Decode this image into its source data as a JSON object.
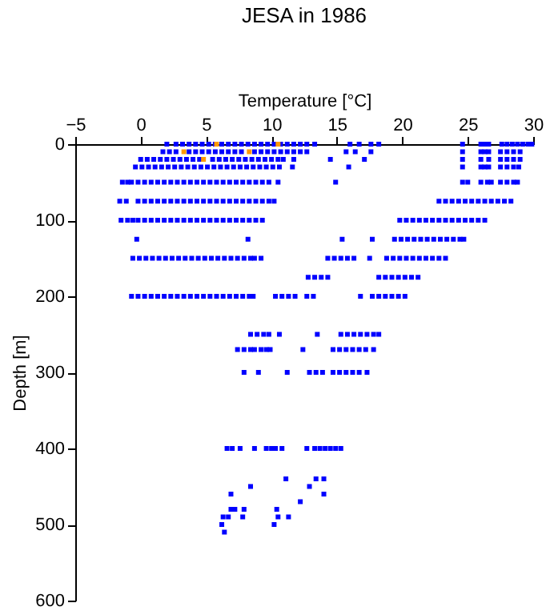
{
  "chart_data": {
    "type": "scatter",
    "title": "JESA in 1986",
    "xlabel": "Temperature [°C]",
    "ylabel": "Depth [m]",
    "xlim": [
      -5,
      30
    ],
    "xticks": [
      -5,
      0,
      5,
      10,
      15,
      20,
      25,
      30
    ],
    "ylim": [
      600,
      0
    ],
    "yticks": [
      0,
      100,
      200,
      300,
      400,
      500,
      600
    ],
    "grid": false,
    "legend": false,
    "marker": "square",
    "series": [
      {
        "color": "#0000ff",
        "x": [
          2.0,
          2.7,
          3.2,
          3.7,
          4.2,
          4.7,
          5.2,
          5.7,
          6.2,
          6.7,
          7.2,
          7.7,
          8.2,
          8.7,
          9.2,
          9.7,
          10.2,
          10.7,
          11.2,
          11.7,
          12.2,
          12.7,
          13.3,
          16.0,
          16.7,
          17.6,
          18.2,
          24.6,
          26.0,
          26.3,
          26.6,
          27.6,
          28.0,
          28.4,
          28.8,
          29.2,
          29.6,
          29.9
        ],
        "values": [
          0,
          0,
          0,
          0,
          0,
          0,
          0,
          0,
          0,
          0,
          0,
          0,
          0,
          0,
          0,
          0,
          0,
          0,
          0,
          0,
          0,
          0,
          0,
          0,
          0,
          0,
          0,
          0,
          0,
          0,
          0,
          0,
          0,
          0,
          0,
          0,
          0,
          0
        ]
      },
      {
        "color": "#0000ff",
        "x": [
          1.7,
          2.2,
          2.7,
          null,
          3.7,
          4.2,
          4.7,
          5.2,
          5.7,
          6.2,
          6.7,
          7.2,
          7.7,
          null,
          8.7,
          9.2,
          9.7,
          10.2,
          10.7,
          11.2,
          11.7,
          12.2,
          12.7,
          15.7,
          16.4,
          17.6,
          24.6,
          26.0,
          26.3,
          26.6,
          27.5,
          28.0,
          28.5,
          29.0
        ],
        "values": [
          10,
          10,
          10,
          null,
          10,
          10,
          10,
          10,
          10,
          10,
          10,
          10,
          10,
          null,
          10,
          10,
          10,
          10,
          10,
          10,
          10,
          10,
          10,
          10,
          10,
          10,
          10,
          10,
          10,
          10,
          10,
          10,
          10,
          10
        ]
      },
      {
        "color": "#0000ff",
        "x": [
          0,
          0.5,
          1,
          1.5,
          2,
          2.5,
          3,
          3.5,
          4,
          4.5,
          null,
          5.5,
          6,
          6.5,
          7,
          7.5,
          8,
          8.5,
          9,
          9.5,
          10,
          10.5,
          10.9,
          11.7,
          14.5,
          17.1,
          24.6,
          26.0,
          null,
          26.6,
          27.5,
          28.0,
          28.5,
          29.0
        ],
        "values": [
          20,
          20,
          20,
          20,
          20,
          20,
          20,
          20,
          20,
          20,
          null,
          20,
          20,
          20,
          20,
          20,
          20,
          20,
          20,
          20,
          20,
          20,
          20,
          20,
          20,
          20,
          20,
          20,
          null,
          20,
          20,
          20,
          20,
          20
        ]
      },
      {
        "color": "#0000ff",
        "x": [
          -0.4,
          0.1,
          0.6,
          1.1,
          1.6,
          2.1,
          2.6,
          3.1,
          3.6,
          4.1,
          4.6,
          5.1,
          5.6,
          6.1,
          6.6,
          7.1,
          7.6,
          8.1,
          8.6,
          9.1,
          9.6,
          10.1,
          10.6,
          11.6,
          15.9,
          24.6,
          26.0,
          26.3,
          26.6,
          27.5,
          28.0,
          28.5,
          28.9
        ],
        "values": [
          30,
          30,
          30,
          30,
          30,
          30,
          30,
          30,
          30,
          30,
          30,
          30,
          30,
          30,
          30,
          30,
          30,
          30,
          30,
          30,
          30,
          30,
          30,
          30,
          30,
          30,
          30,
          30,
          30,
          30,
          30,
          30,
          30
        ]
      },
      {
        "color": "#0000ff",
        "x": [
          -1.4,
          -1.0,
          -0.7,
          -0.2,
          0.3,
          0.8,
          1.3,
          1.8,
          2.3,
          2.8,
          3.3,
          3.8,
          4.3,
          4.8,
          5.3,
          5.8,
          6.3,
          6.8,
          7.3,
          7.8,
          8.3,
          8.8,
          9.3,
          9.8,
          10.5,
          14.9,
          24.6,
          25.0,
          26.0,
          26.5,
          26.8,
          27.5,
          28.0,
          28.5,
          28.8
        ],
        "values": [
          50,
          50,
          50,
          50,
          50,
          50,
          50,
          50,
          50,
          50,
          50,
          50,
          50,
          50,
          50,
          50,
          50,
          50,
          50,
          50,
          50,
          50,
          50,
          50,
          50,
          50,
          50,
          50,
          50,
          50,
          50,
          50,
          50,
          50,
          50
        ]
      },
      {
        "color": "#0000ff",
        "x": [
          -1.6,
          -1.1,
          -0.2,
          0.3,
          0.8,
          1.3,
          1.8,
          2.3,
          2.8,
          3.3,
          3.8,
          4.3,
          4.8,
          5.3,
          5.8,
          6.3,
          6.8,
          7.3,
          7.8,
          8.3,
          8.8,
          9.3,
          9.8,
          10.2,
          22.8,
          23.3,
          23.8,
          24.3,
          24.8,
          25.3,
          25.8,
          26.3,
          26.8,
          27.3,
          27.8,
          28.3
        ],
        "values": [
          75,
          75,
          75,
          75,
          75,
          75,
          75,
          75,
          75,
          75,
          75,
          75,
          75,
          75,
          75,
          75,
          75,
          75,
          75,
          75,
          75,
          75,
          75,
          75,
          75,
          75,
          75,
          75,
          75,
          75,
          75,
          75,
          75,
          75,
          75,
          75
        ]
      },
      {
        "color": "#0000ff",
        "x": [
          -1.5,
          -1.0,
          -0.6,
          -0.2,
          0.3,
          0.8,
          1.3,
          1.8,
          2.3,
          2.8,
          3.3,
          3.8,
          4.3,
          4.8,
          5.3,
          5.8,
          6.3,
          6.8,
          7.3,
          7.8,
          8.3,
          8.8,
          9.3,
          19.8,
          20.3,
          20.8,
          21.3,
          21.8,
          22.3,
          22.8,
          23.3,
          23.8,
          24.3,
          24.8,
          25.3,
          25.8,
          26.3
        ],
        "values": [
          100,
          100,
          100,
          100,
          100,
          100,
          100,
          100,
          100,
          100,
          100,
          100,
          100,
          100,
          100,
          100,
          100,
          100,
          100,
          100,
          100,
          100,
          100,
          100,
          100,
          100,
          100,
          100,
          100,
          100,
          100,
          100,
          100,
          100,
          100,
          100,
          100
        ]
      },
      {
        "color": "#0000ff",
        "x": [
          -0.3,
          8.2,
          15.4,
          17.7,
          19.4,
          19.9,
          20.4,
          20.9,
          21.4,
          21.9,
          22.4,
          22.9,
          23.4,
          23.9,
          24.4,
          24.7
        ],
        "values": [
          125,
          125,
          125,
          125,
          125,
          125,
          125,
          125,
          125,
          125,
          125,
          125,
          125,
          125,
          125,
          125
        ]
      },
      {
        "color": "#0000ff",
        "x": [
          -0.6,
          -0.1,
          0.4,
          0.9,
          1.4,
          1.9,
          2.4,
          2.9,
          3.4,
          3.9,
          4.4,
          4.9,
          5.4,
          5.9,
          6.4,
          6.9,
          7.4,
          7.9,
          8.4,
          8.7,
          9.2,
          14.3,
          14.8,
          15.3,
          15.8,
          16.3,
          17.5,
          18.8,
          19.3,
          19.8,
          20.3,
          20.8,
          21.3,
          21.8,
          22.3,
          22.8,
          23.3
        ],
        "values": [
          150,
          150,
          150,
          150,
          150,
          150,
          150,
          150,
          150,
          150,
          150,
          150,
          150,
          150,
          150,
          150,
          150,
          150,
          150,
          150,
          150,
          150,
          150,
          150,
          150,
          150,
          150,
          150,
          150,
          150,
          150,
          150,
          150,
          150,
          150,
          150,
          150
        ]
      },
      {
        "color": "#0000ff",
        "x": [
          12.8,
          13.3,
          13.8,
          14.3,
          18.2,
          18.7,
          19.2,
          19.7,
          20.2,
          20.7,
          21.2
        ],
        "values": [
          175,
          175,
          175,
          175,
          175,
          175,
          175,
          175,
          175,
          175,
          175
        ]
      },
      {
        "color": "#0000ff",
        "x": [
          -0.7,
          -0.2,
          0.3,
          0.8,
          1.3,
          1.8,
          2.3,
          2.8,
          3.3,
          3.8,
          4.3,
          4.8,
          5.3,
          5.8,
          6.3,
          6.8,
          7.3,
          7.8,
          8.3,
          8.6,
          10.3,
          10.8,
          11.3,
          11.8,
          12.7,
          13.2,
          16.8,
          17.7,
          18.2,
          18.7,
          19.2,
          19.7,
          20.2
        ],
        "values": [
          200,
          200,
          200,
          200,
          200,
          200,
          200,
          200,
          200,
          200,
          200,
          200,
          200,
          200,
          200,
          200,
          200,
          200,
          200,
          200,
          200,
          200,
          200,
          200,
          200,
          200,
          200,
          200,
          200,
          200,
          200,
          200,
          200
        ]
      },
      {
        "color": "#0000ff",
        "x": [
          8.4,
          8.9,
          9.4,
          9.8,
          10.6,
          13.5,
          15.3,
          15.8,
          16.3,
          16.8,
          17.3,
          17.8,
          18.2
        ],
        "values": [
          250,
          250,
          250,
          250,
          250,
          250,
          250,
          250,
          250,
          250,
          250,
          250,
          250
        ]
      },
      {
        "color": "#0000ff",
        "x": [
          7.4,
          7.9,
          8.4,
          8.7,
          9.2,
          9.6,
          9.9,
          12.4,
          14.7,
          15.2,
          15.7,
          16.2,
          16.7,
          17.2,
          17.8
        ],
        "values": [
          270,
          270,
          270,
          270,
          270,
          270,
          270,
          270,
          270,
          270,
          270,
          270,
          270,
          270,
          270
        ]
      },
      {
        "color": "#0000ff",
        "x": [
          7.9,
          9.0,
          11.2,
          12.9,
          13.4,
          13.9,
          14.7,
          15.2,
          15.7,
          16.2,
          16.7,
          17.3
        ],
        "values": [
          300,
          300,
          300,
          300,
          300,
          300,
          300,
          300,
          300,
          300,
          300,
          300
        ]
      },
      {
        "color": "#0000ff",
        "x": [
          6.6,
          7.0,
          7.6,
          8.7,
          9.6,
          10.0,
          10.3,
          10.8,
          12.7,
          13.3,
          13.7,
          14.1,
          14.5,
          14.9,
          15.3
        ],
        "values": [
          400,
          400,
          400,
          400,
          400,
          400,
          400,
          400,
          400,
          400,
          400,
          400,
          400,
          400,
          400
        ]
      },
      {
        "color": "#0000ff",
        "x": [
          11.1,
          13.4,
          14.0,
          8.4,
          12.9,
          6.9,
          14.0,
          12.2,
          6.9,
          7.2,
          7.9,
          10.4,
          6.3,
          6.7,
          7.8,
          10.5,
          11.3,
          6.2,
          10.2,
          6.4
        ],
        "values": [
          440,
          440,
          440,
          450,
          450,
          460,
          460,
          470,
          480,
          480,
          480,
          480,
          490,
          490,
          490,
          490,
          490,
          500,
          500,
          510
        ]
      },
      {
        "color": "#ff9900",
        "x": [
          5.8,
          10.5,
          3.3,
          8.3,
          4.8
        ],
        "values": [
          0,
          0,
          10,
          10,
          20
        ]
      }
    ]
  }
}
